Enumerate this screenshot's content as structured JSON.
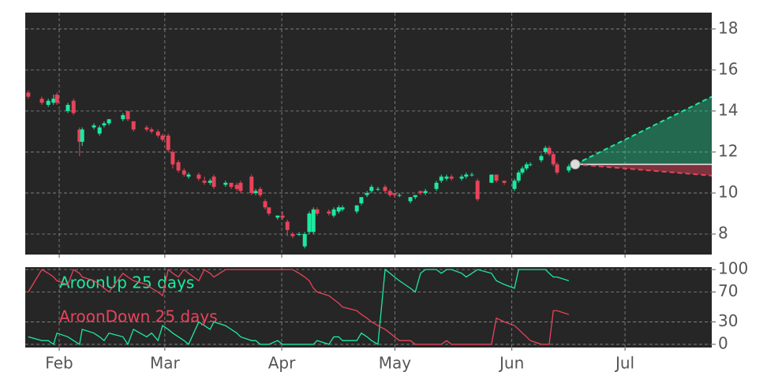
{
  "chart_data": [
    {
      "type": "candlestick",
      "x": [
        23.8,
        27.4,
        29.1,
        30.5,
        31.4,
        34.3,
        35.8,
        37.4,
        38.1,
        41.2,
        42.7,
        43.9,
        45.2,
        48.9,
        50.2,
        51.7,
        55.2,
        56.5,
        58.2,
        59.4,
        60.9,
        62.1,
        63.6,
        65.1,
        66.3,
        69.0,
        70.5,
        72.0,
        73.0,
        76.1,
        77.6,
        79.1,
        80.1,
        83.0,
        84.1,
        85.3,
        86.6,
        87.6,
        89.9,
        91.2,
        92.5,
        93.9,
        95.6,
        97.1,
        98.3,
        99.4,
        100.4,
        103.5,
        104.8,
        106.1,
        107.1,
        110.9,
        112.1,
        113.6,
        114.8,
        116.5,
        118.4,
        119.7,
        120.9,
        122.2,
        125.1,
        126.4,
        127.8,
        129.1,
        132.0,
        133.3,
        134.7,
        136.0,
        138.7,
        139.9,
        141.4,
        142.9,
        146.6,
        147.9,
        150.0,
        152.7,
        153.8,
        154.8,
        155.9,
        156.9,
        159.8,
        160.9,
        161.9,
        163.0,
        164.0,
        167.1
      ],
      "open": [
        14.9,
        14.6,
        14.3,
        14.4,
        14.8,
        14.0,
        14.5,
        13.1,
        12.5,
        13.2,
        12.9,
        13.3,
        13.4,
        13.6,
        14.0,
        13.5,
        13.2,
        13.1,
        13.0,
        12.8,
        12.8,
        12.0,
        11.5,
        11.1,
        10.8,
        10.9,
        10.6,
        10.5,
        10.8,
        10.4,
        10.5,
        10.4,
        10.5,
        10.8,
        10.0,
        10.2,
        9.6,
        9.3,
        8.8,
        8.9,
        8.6,
        8.0,
        8.0,
        7.4,
        8.1,
        8.1,
        9.2,
        9.1,
        8.9,
        9.1,
        9.2,
        9.1,
        9.5,
        9.9,
        10.1,
        10.2,
        10.3,
        10.1,
        10.0,
        9.9,
        9.6,
        9.8,
        10.1,
        10.0,
        10.2,
        10.6,
        10.7,
        10.8,
        10.7,
        10.8,
        10.9,
        10.6,
        10.5,
        10.9,
        10.6,
        10.2,
        10.6,
        11.0,
        11.2,
        11.4,
        11.6,
        12.0,
        12.2,
        11.9,
        11.4,
        11.1
      ],
      "high": [
        15.0,
        14.7,
        14.6,
        14.8,
        14.9,
        14.4,
        14.6,
        13.2,
        13.2,
        13.4,
        13.3,
        13.5,
        13.6,
        13.9,
        14.0,
        13.5,
        13.3,
        13.2,
        13.1,
        12.9,
        12.9,
        12.1,
        11.6,
        11.2,
        11.0,
        11.0,
        10.8,
        10.7,
        10.9,
        10.6,
        10.5,
        10.5,
        10.6,
        10.9,
        10.2,
        10.3,
        9.7,
        9.3,
        8.9,
        9.1,
        8.7,
        8.1,
        8.1,
        8.1,
        9.1,
        9.3,
        9.3,
        9.2,
        9.3,
        9.4,
        9.4,
        9.4,
        9.8,
        10.1,
        10.4,
        10.3,
        10.4,
        10.2,
        10.0,
        10.0,
        9.8,
        9.9,
        10.1,
        10.2,
        10.6,
        10.9,
        10.9,
        10.9,
        10.9,
        11.0,
        11.0,
        10.7,
        10.9,
        10.9,
        10.6,
        10.7,
        11.1,
        11.3,
        11.5,
        11.5,
        11.9,
        12.3,
        12.3,
        12.0,
        11.5,
        11.4
      ],
      "low": [
        14.6,
        14.3,
        14.2,
        14.3,
        14.3,
        13.9,
        13.8,
        11.8,
        12.3,
        13.1,
        12.8,
        13.2,
        13.3,
        13.5,
        13.5,
        13.0,
        13.0,
        12.9,
        12.7,
        12.5,
        12.0,
        11.2,
        11.0,
        10.8,
        10.7,
        10.6,
        10.4,
        10.4,
        10.2,
        10.3,
        10.2,
        10.1,
        10.0,
        9.9,
        9.9,
        9.8,
        9.2,
        8.9,
        8.7,
        8.7,
        7.9,
        7.8,
        7.9,
        7.3,
        8.0,
        8.0,
        8.9,
        8.9,
        8.8,
        9.0,
        9.1,
        9.0,
        9.4,
        9.8,
        10.0,
        10.1,
        10.0,
        9.8,
        9.8,
        9.8,
        9.5,
        9.7,
        9.9,
        9.9,
        10.1,
        10.5,
        10.6,
        10.6,
        10.6,
        10.7,
        10.8,
        9.6,
        10.5,
        10.5,
        10.4,
        10.1,
        10.5,
        10.9,
        11.1,
        11.3,
        11.5,
        11.9,
        11.8,
        11.3,
        10.9,
        11.0
      ],
      "close": [
        14.7,
        14.4,
        14.5,
        14.6,
        14.4,
        14.3,
        13.9,
        12.5,
        13.1,
        13.3,
        13.2,
        13.4,
        13.6,
        13.8,
        13.6,
        13.1,
        13.1,
        13.0,
        12.8,
        12.6,
        12.1,
        11.4,
        11.1,
        10.9,
        10.9,
        10.7,
        10.5,
        10.6,
        10.3,
        10.5,
        10.3,
        10.2,
        10.1,
        10.0,
        10.1,
        9.9,
        9.3,
        9.0,
        8.9,
        8.8,
        8.2,
        7.9,
        8.0,
        8.0,
        9.0,
        9.2,
        9.0,
        9.0,
        9.2,
        9.3,
        9.3,
        9.4,
        9.8,
        10.0,
        10.3,
        10.2,
        10.1,
        9.9,
        9.9,
        9.9,
        9.8,
        9.9,
        10.0,
        10.1,
        10.5,
        10.8,
        10.8,
        10.7,
        10.8,
        10.9,
        10.9,
        9.7,
        10.9,
        10.6,
        10.5,
        10.6,
        11.0,
        11.2,
        11.4,
        11.4,
        11.8,
        12.2,
        11.9,
        11.4,
        11.0,
        11.3
      ],
      "up_color": "#1de9a0",
      "down_color": "#e8435a",
      "forecast": {
        "x": [
          168.8,
          205
        ],
        "high": [
          11.4,
          14.7
        ],
        "mid": [
          11.4,
          11.4
        ],
        "low": [
          11.4,
          10.85
        ]
      },
      "xlim": [
        23,
        205
      ],
      "ylim": [
        7,
        18.8
      ],
      "yticks": [
        8,
        10,
        12,
        14,
        16,
        18
      ],
      "grid": true
    },
    {
      "type": "line",
      "x": [
        23.8,
        27.4,
        29.1,
        30.5,
        31.4,
        34.3,
        35.8,
        37.4,
        38.1,
        41.2,
        42.7,
        43.9,
        45.2,
        48.9,
        50.2,
        51.7,
        55.2,
        56.5,
        58.2,
        59.4,
        60.9,
        62.1,
        63.6,
        65.1,
        66.3,
        69.0,
        70.5,
        72.0,
        73.0,
        76.1,
        77.6,
        79.1,
        80.1,
        83.0,
        84.1,
        85.3,
        86.6,
        87.6,
        89.9,
        91.2,
        92.5,
        93.9,
        95.6,
        97.1,
        98.3,
        99.4,
        100.4,
        103.5,
        104.8,
        106.1,
        107.1,
        110.9,
        112.1,
        113.6,
        114.8,
        116.5,
        118.4,
        119.7,
        120.9,
        122.2,
        125.1,
        126.4,
        127.8,
        129.1,
        132.0,
        133.3,
        134.7,
        136.0,
        138.7,
        139.9,
        141.4,
        142.9,
        146.6,
        147.9,
        150.0,
        152.7,
        153.8,
        154.8,
        155.9,
        156.9,
        159.8,
        160.9,
        161.9,
        163.0,
        164.0,
        167.1
      ],
      "series": [
        {
          "name": "AroonUp 25 days",
          "color": "#1de9a0",
          "values": [
            10,
            5,
            5,
            0,
            15,
            10,
            5,
            0,
            20,
            15,
            10,
            5,
            15,
            10,
            0,
            20,
            10,
            15,
            5,
            25,
            20,
            15,
            10,
            5,
            0,
            30,
            25,
            20,
            30,
            25,
            20,
            15,
            10,
            5,
            5,
            0,
            0,
            0,
            5,
            0,
            0,
            0,
            0,
            0,
            0,
            0,
            5,
            0,
            10,
            10,
            5,
            5,
            15,
            10,
            5,
            0,
            100,
            95,
            90,
            85,
            75,
            70,
            95,
            100,
            100,
            95,
            100,
            100,
            95,
            90,
            95,
            100,
            95,
            85,
            80,
            75,
            100,
            100,
            100,
            100,
            100,
            100,
            95,
            90,
            90,
            85
          ]
        },
        {
          "name": "AroonDown 25 days",
          "color": "#e8435a",
          "values": [
            70,
            100,
            95,
            90,
            85,
            80,
            100,
            95,
            90,
            85,
            80,
            75,
            70,
            95,
            90,
            85,
            80,
            75,
            70,
            65,
            100,
            95,
            90,
            100,
            95,
            85,
            100,
            95,
            90,
            100,
            100,
            100,
            100,
            100,
            100,
            100,
            100,
            100,
            100,
            100,
            100,
            100,
            95,
            90,
            85,
            75,
            70,
            65,
            60,
            55,
            50,
            45,
            40,
            35,
            30,
            25,
            20,
            15,
            10,
            5,
            5,
            0,
            0,
            0,
            0,
            0,
            5,
            0,
            0,
            0,
            0,
            0,
            0,
            35,
            30,
            25,
            20,
            15,
            10,
            5,
            0,
            0,
            0,
            45,
            45,
            40
          ]
        }
      ],
      "xlim": [
        23,
        205
      ],
      "ylim": [
        -4.3,
        103.2
      ],
      "yticks": [
        0,
        30,
        70,
        100
      ],
      "xticks": [
        {
          "value": 32,
          "label": "Feb"
        },
        {
          "value": 60,
          "label": "Mar"
        },
        {
          "value": 91,
          "label": "Apr"
        },
        {
          "value": 121,
          "label": "May"
        },
        {
          "value": 152,
          "label": "Jun"
        },
        {
          "value": 182,
          "label": "Jul"
        }
      ],
      "grid": true
    }
  ]
}
